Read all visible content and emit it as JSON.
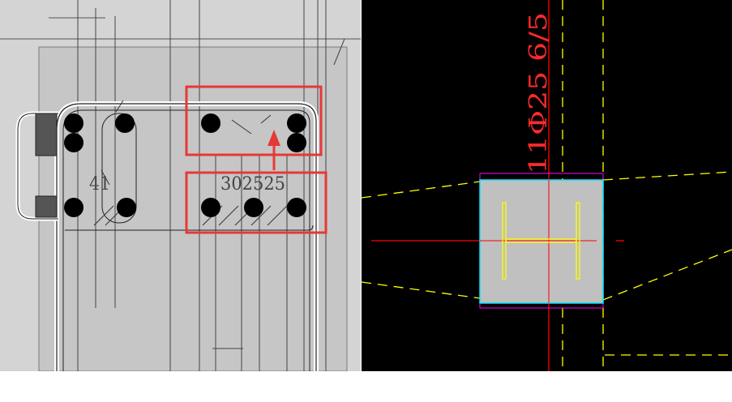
{
  "left_panel": {
    "dimension_labels": {
      "left_spacing": "41",
      "right_spacing": "302525"
    },
    "colors": {
      "background": "#d4d4d4",
      "concrete_fill": "#c8c8c8",
      "rebar": "#000000",
      "highlight": "#e53935"
    }
  },
  "right_panel": {
    "rebar_annotation": "11Φ25 6/5",
    "colors": {
      "background": "#000000",
      "axis": "#ff0000",
      "dashed": "#ffff00",
      "column_fill": "#c0c0c0",
      "column_border": "#00e5ff",
      "outer_border": "#ff00ff",
      "steel_section": "#ffff00"
    }
  }
}
